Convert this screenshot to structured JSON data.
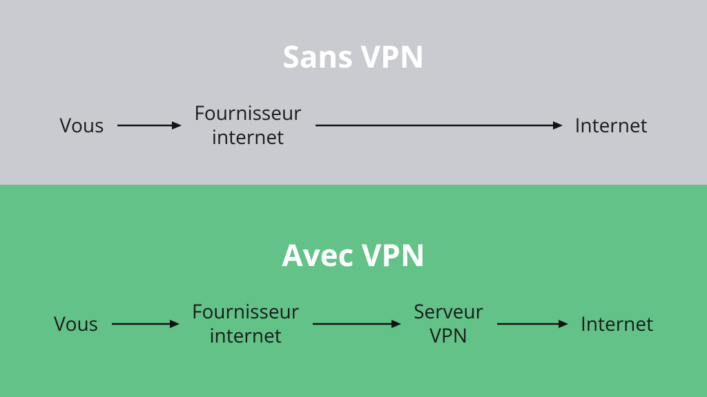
{
  "top": {
    "title": "Sans VPN",
    "title_fontsize": 44,
    "background_color": "#c9cbd1",
    "flow": {
      "node_fontsize": 28,
      "arrow_color": "#131313",
      "arrow_stroke": 2.5,
      "nodes": [
        {
          "label": "Vous"
        },
        {
          "label": "Fournisseur\ninternet"
        },
        {
          "label": "Internet"
        }
      ],
      "arrows": [
        {
          "length": 95
        },
        {
          "length": 360
        }
      ]
    }
  },
  "bottom": {
    "title": "Avec VPN",
    "title_fontsize": 44,
    "background_color": "#62c287",
    "flow": {
      "node_fontsize": 28,
      "arrow_color": "#131313",
      "arrow_stroke": 2.5,
      "nodes": [
        {
          "label": "Vous"
        },
        {
          "label": "Fournisseur\ninternet"
        },
        {
          "label": "Serveur\nVPN"
        },
        {
          "label": "Internet"
        }
      ],
      "arrows": [
        {
          "length": 100
        },
        {
          "length": 130
        },
        {
          "length": 105
        }
      ]
    }
  }
}
